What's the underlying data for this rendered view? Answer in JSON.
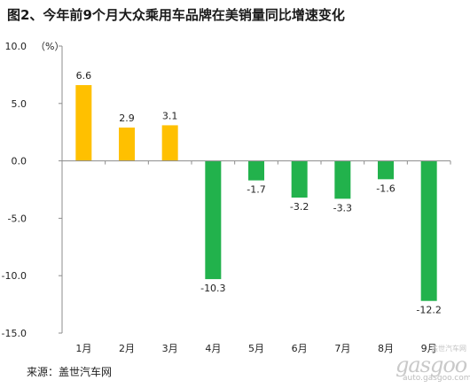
{
  "title": "图2、今年前9个月大众乘用车品牌在美销量同比增速变化",
  "source": "来源：盖世汽车网",
  "watermark": {
    "logo_text": "gasgoo",
    "cn_text": "盖世汽车网",
    "url_text": "auto.gasgoo.com"
  },
  "colors": {
    "positive": "#FFC000",
    "negative": "#22B24C",
    "axis": "#8c8c8c"
  },
  "chart_data": {
    "type": "bar",
    "title": "图2、今年前9个月大众乘用车品牌在美销量同比增速变化",
    "unit_label": "（%）",
    "categories": [
      "1月",
      "2月",
      "3月",
      "4月",
      "5月",
      "6月",
      "7月",
      "8月",
      "9月"
    ],
    "values": [
      6.6,
      2.9,
      3.1,
      -10.3,
      -1.7,
      -3.2,
      -3.3,
      -1.6,
      -12.2
    ],
    "value_labels": [
      "6.6",
      "2.9",
      "3.1",
      "-10.3",
      "-1.7",
      "-3.2",
      "-3.3",
      "-1.6",
      "-12.2"
    ],
    "ylim": [
      -15.0,
      10.0
    ],
    "yticks": [
      10.0,
      5.0,
      0.0,
      -5.0,
      -10.0,
      -15.0
    ],
    "ytick_labels": [
      "10.0",
      "5.0",
      "0.0",
      "-5.0",
      "-10.0",
      "-15.0"
    ],
    "grid": false,
    "legend": "none"
  }
}
